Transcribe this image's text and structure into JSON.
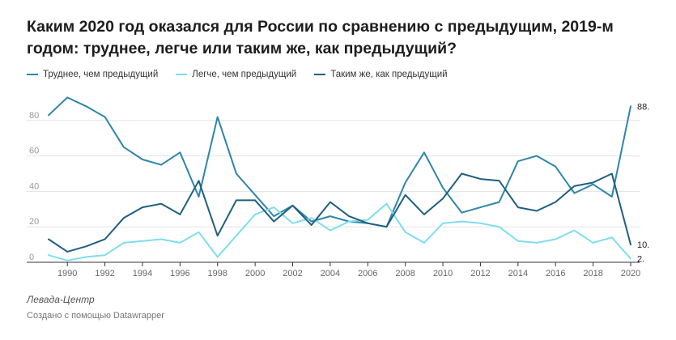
{
  "title": "Каким 2020 год оказался для России по сравнению с предыдущим, 2019-м годом: труднее, легче или таким же, как предыдущий?",
  "source": "Левада-Центр",
  "credit": "Создано с помощью Datawrapper",
  "chart_data": {
    "type": "line",
    "title": "Каким 2020 год оказался для России по сравнению с предыдущим, 2019-м годом: труднее, легче или таким же, как предыдущий?",
    "x": [
      1989,
      1990,
      1991,
      1992,
      1993,
      1994,
      1995,
      1996,
      1997,
      1998,
      1999,
      2000,
      2001,
      2002,
      2003,
      2004,
      2005,
      2006,
      2007,
      2008,
      2009,
      2010,
      2011,
      2012,
      2013,
      2014,
      2015,
      2016,
      2017,
      2018,
      2019,
      2020
    ],
    "xticks": [
      1990,
      1992,
      1994,
      1996,
      1998,
      2000,
      2002,
      2004,
      2006,
      2008,
      2010,
      2012,
      2014,
      2016,
      2018,
      2020
    ],
    "yticks": [
      0,
      20,
      40,
      60,
      80
    ],
    "ylim": [
      0,
      95
    ],
    "grid": "horizontal",
    "legend_position": "top-left",
    "series": [
      {
        "name": "Труднее, чем предыдущий",
        "color": "#2e86a8",
        "end_label": "88.",
        "values": [
          83,
          93,
          88,
          82,
          65,
          58,
          55,
          62,
          37,
          82,
          50,
          38,
          26,
          32,
          23,
          26,
          23,
          22,
          20,
          45,
          62,
          42,
          28,
          31,
          34,
          57,
          60,
          54,
          39,
          44,
          37,
          88
        ]
      },
      {
        "name": "Легче, чем предыдущий",
        "color": "#7fdcef",
        "end_label": "2.",
        "values": [
          4,
          1,
          3,
          4,
          11,
          12,
          13,
          11,
          17,
          3,
          15,
          27,
          31,
          22,
          25,
          18,
          23,
          24,
          33,
          17,
          11,
          22,
          23,
          22,
          20,
          12,
          11,
          13,
          18,
          11,
          14,
          2
        ]
      },
      {
        "name": "Таким  же, как предыдущий",
        "color": "#1f5f80",
        "end_label": "10.",
        "values": [
          13,
          6,
          9,
          13,
          25,
          31,
          33,
          27,
          46,
          15,
          35,
          35,
          23,
          32,
          21,
          34,
          26,
          22,
          20,
          38,
          27,
          36,
          50,
          47,
          46,
          31,
          29,
          34,
          43,
          45,
          50,
          10
        ]
      }
    ]
  }
}
